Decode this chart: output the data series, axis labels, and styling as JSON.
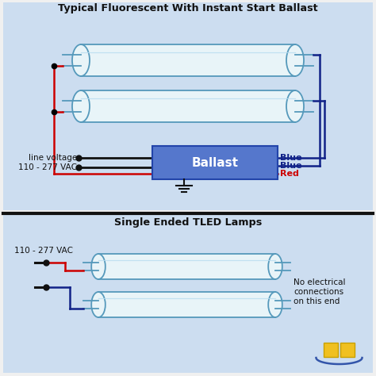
{
  "title_top": "Typical Fluorescent With Instant Start Ballast",
  "title_bottom": "Single Ended TLED Lamps",
  "bg_top": "#ccddf0",
  "bg_bottom": "#ccddf0",
  "bg_figure": "#f0f0f0",
  "tube_fill": "#e8f4f8",
  "tube_border": "#5599bb",
  "ballast_fill": "#5577cc",
  "ballast_text": "Ballast",
  "ballast_text_color": "#ffffff",
  "wire_red": "#cc0000",
  "wire_blue": "#112288",
  "wire_black": "#111111",
  "label_red": "Red",
  "label_blue1": "Blue",
  "label_blue2": "Blue",
  "label_line_voltage": "line voltage\n110 - 277 VAC",
  "label_vac_bottom": "110 - 277 VAC",
  "label_no_connections": "No electrical\nconnections\non this end",
  "title_color": "#111111",
  "text_color": "#111111",
  "divider_color": "#111111",
  "logo_color1": "#f0c020",
  "logo_color2": "#c8a000",
  "logo_arc_color": "#3355aa"
}
